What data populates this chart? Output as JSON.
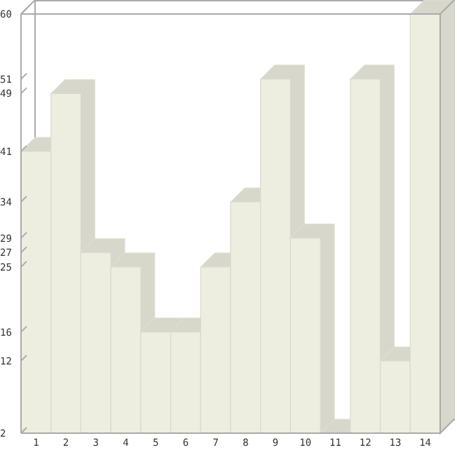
{
  "chart_data": {
    "type": "bar",
    "categories": [
      "1",
      "2",
      "3",
      "4",
      "5",
      "6",
      "7",
      "8",
      "9",
      "10",
      "11",
      "12",
      "13",
      "14"
    ],
    "values": [
      41,
      49,
      27,
      25,
      16,
      16,
      25,
      34,
      51,
      29,
      2,
      51,
      12,
      60
    ],
    "color": "#eeeee0",
    "ylim": [
      2,
      60
    ],
    "yticks": [
      2,
      12,
      16,
      25,
      27,
      29,
      34,
      41,
      49,
      51,
      60
    ],
    "grid": false
  }
}
